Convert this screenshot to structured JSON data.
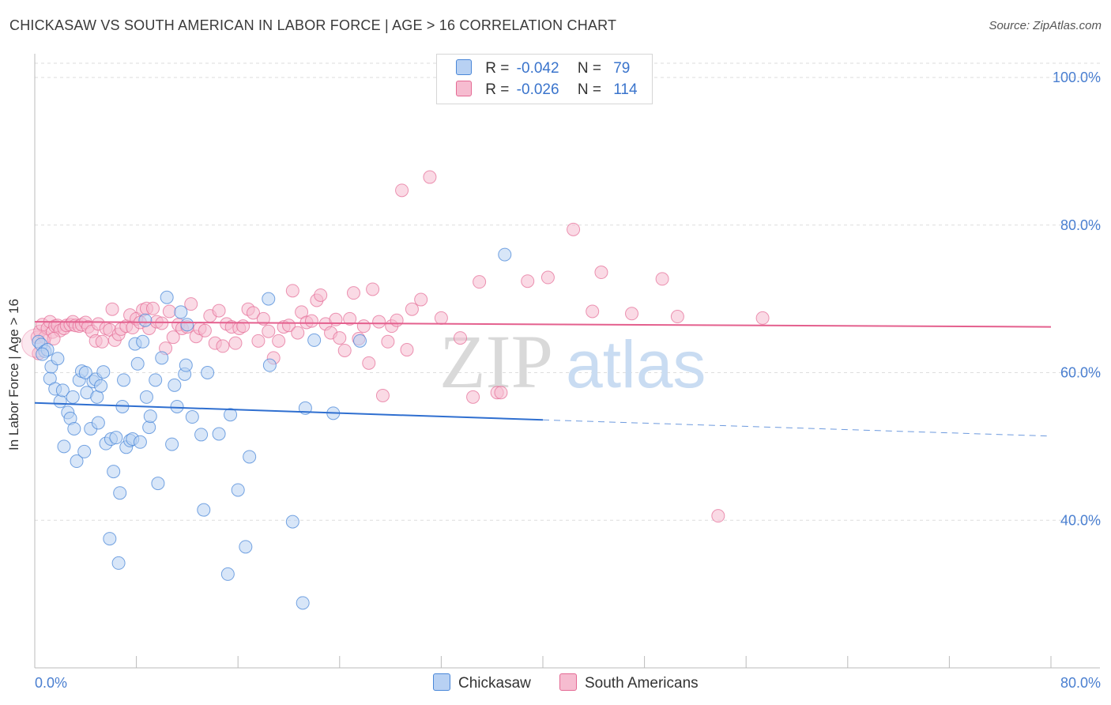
{
  "title": "CHICKASAW VS SOUTH AMERICAN IN LABOR FORCE | AGE > 16 CORRELATION CHART",
  "source": "Source: ZipAtlas.com",
  "watermark": {
    "zip": "ZIP",
    "atlas": "atlas"
  },
  "colors": {
    "blue": "#4a87d8",
    "blue_fill": "#b8d1f3",
    "pink": "#e46a94",
    "pink_fill": "#f6bcd0",
    "axis_text": "#4a7fd0"
  },
  "legend": {
    "rows": [
      {
        "r_label": "R =",
        "r_value": "-0.042",
        "n_label": "N =",
        "n_value": "79"
      },
      {
        "r_label": "R =",
        "r_value": "-0.026",
        "n_label": "N =",
        "n_value": "114"
      }
    ]
  },
  "bottom_legend": {
    "series1": "Chickasaw",
    "series2": "South Americans"
  },
  "chart_data": {
    "type": "scatter",
    "title": "CHICKASAW VS SOUTH AMERICAN IN LABOR FORCE | AGE > 16 CORRELATION CHART",
    "xlabel": "",
    "ylabel": "In Labor Force | Age > 16",
    "xlim": [
      0,
      80
    ],
    "ylim": [
      20,
      100
    ],
    "x_tick_labels": [
      "0.0%",
      "80.0%"
    ],
    "y_ticks": [
      40,
      60,
      80,
      100
    ],
    "y_tick_labels": [
      "40.0%",
      "60.0%",
      "80.0%",
      "100.0%"
    ],
    "grid": true,
    "series": [
      {
        "name": "Chickasaw",
        "R": -0.042,
        "N": 79,
        "trend": {
          "x0": 0,
          "y0": 55.9,
          "x1": 40,
          "y1": 53.6,
          "dash_to_x": 80,
          "dash_to_y": 51.4
        },
        "points": [
          [
            0.3,
            64.2
          ],
          [
            0.5,
            63.8
          ],
          [
            0.8,
            62.9
          ],
          [
            1.0,
            63.1
          ],
          [
            1.2,
            59.2
          ],
          [
            1.3,
            60.8
          ],
          [
            1.6,
            57.8
          ],
          [
            1.8,
            61.9
          ],
          [
            2.0,
            56.1
          ],
          [
            2.2,
            57.6
          ],
          [
            2.3,
            50.0
          ],
          [
            2.6,
            54.6
          ],
          [
            2.8,
            53.8
          ],
          [
            3.0,
            56.7
          ],
          [
            3.1,
            52.4
          ],
          [
            3.3,
            48.0
          ],
          [
            3.5,
            59.0
          ],
          [
            3.7,
            60.2
          ],
          [
            3.9,
            49.3
          ],
          [
            4.0,
            60.0
          ],
          [
            4.1,
            57.3
          ],
          [
            4.4,
            52.4
          ],
          [
            4.6,
            58.8
          ],
          [
            4.8,
            59.1
          ],
          [
            4.9,
            56.7
          ],
          [
            5.0,
            53.2
          ],
          [
            5.2,
            58.2
          ],
          [
            5.4,
            60.1
          ],
          [
            5.6,
            50.4
          ],
          [
            5.9,
            37.5
          ],
          [
            6.0,
            51.0
          ],
          [
            6.2,
            46.6
          ],
          [
            6.4,
            51.2
          ],
          [
            6.6,
            34.2
          ],
          [
            6.7,
            43.7
          ],
          [
            6.9,
            55.4
          ],
          [
            7.0,
            59.0
          ],
          [
            7.2,
            49.9
          ],
          [
            7.5,
            50.8
          ],
          [
            7.7,
            51.0
          ],
          [
            7.9,
            63.9
          ],
          [
            8.1,
            61.2
          ],
          [
            8.3,
            50.6
          ],
          [
            8.5,
            64.2
          ],
          [
            8.7,
            67.1
          ],
          [
            8.8,
            56.7
          ],
          [
            9.0,
            52.6
          ],
          [
            9.1,
            54.1
          ],
          [
            9.5,
            59.0
          ],
          [
            9.7,
            45.0
          ],
          [
            10.0,
            62.0
          ],
          [
            10.4,
            70.2
          ],
          [
            10.8,
            50.3
          ],
          [
            11.0,
            58.3
          ],
          [
            11.2,
            55.4
          ],
          [
            11.5,
            68.2
          ],
          [
            11.8,
            59.8
          ],
          [
            11.9,
            61.0
          ],
          [
            12.0,
            66.5
          ],
          [
            12.4,
            54.0
          ],
          [
            13.1,
            51.6
          ],
          [
            13.3,
            41.4
          ],
          [
            13.6,
            60.0
          ],
          [
            14.5,
            51.7
          ],
          [
            15.2,
            32.7
          ],
          [
            15.4,
            54.3
          ],
          [
            16.0,
            44.1
          ],
          [
            16.6,
            36.4
          ],
          [
            16.9,
            48.6
          ],
          [
            18.4,
            70.0
          ],
          [
            18.5,
            61.0
          ],
          [
            20.3,
            39.8
          ],
          [
            21.1,
            28.8
          ],
          [
            21.3,
            55.2
          ],
          [
            22.0,
            64.4
          ],
          [
            23.5,
            54.5
          ],
          [
            25.6,
            64.3
          ],
          [
            37.0,
            76.0
          ],
          [
            0.6,
            62.5
          ]
        ]
      },
      {
        "name": "South Americans",
        "R": -0.026,
        "N": 114,
        "trend": {
          "x0": 0,
          "y0": 66.9,
          "x1": 80,
          "y1": 66.2
        },
        "points": [
          [
            0.2,
            64.8
          ],
          [
            0.4,
            65.6
          ],
          [
            0.6,
            66.5
          ],
          [
            0.8,
            64.8
          ],
          [
            1.0,
            66.0
          ],
          [
            1.2,
            66.9
          ],
          [
            1.4,
            65.5
          ],
          [
            1.6,
            66.3
          ],
          [
            1.8,
            66.4
          ],
          [
            2.0,
            65.7
          ],
          [
            2.3,
            66.0
          ],
          [
            2.5,
            66.4
          ],
          [
            2.8,
            66.5
          ],
          [
            3.0,
            66.9
          ],
          [
            3.2,
            66.4
          ],
          [
            3.5,
            66.3
          ],
          [
            3.7,
            66.5
          ],
          [
            4.0,
            66.8
          ],
          [
            4.2,
            66.2
          ],
          [
            4.5,
            65.6
          ],
          [
            4.8,
            64.3
          ],
          [
            5.0,
            66.6
          ],
          [
            5.3,
            64.2
          ],
          [
            5.6,
            66.0
          ],
          [
            5.9,
            65.8
          ],
          [
            6.1,
            68.6
          ],
          [
            6.3,
            64.4
          ],
          [
            6.6,
            65.2
          ],
          [
            6.8,
            65.9
          ],
          [
            7.2,
            66.3
          ],
          [
            7.5,
            67.8
          ],
          [
            7.7,
            66.1
          ],
          [
            8.0,
            67.3
          ],
          [
            8.3,
            66.8
          ],
          [
            8.5,
            68.5
          ],
          [
            8.8,
            68.7
          ],
          [
            9.0,
            66.0
          ],
          [
            9.3,
            68.7
          ],
          [
            9.6,
            66.9
          ],
          [
            10.0,
            66.7
          ],
          [
            10.3,
            63.3
          ],
          [
            10.6,
            68.3
          ],
          [
            10.9,
            64.8
          ],
          [
            11.3,
            66.5
          ],
          [
            11.6,
            66.0
          ],
          [
            12.0,
            66.2
          ],
          [
            12.3,
            69.3
          ],
          [
            12.7,
            64.9
          ],
          [
            13.0,
            66.0
          ],
          [
            13.4,
            65.7
          ],
          [
            13.8,
            67.7
          ],
          [
            14.2,
            64.0
          ],
          [
            14.5,
            68.4
          ],
          [
            14.8,
            63.6
          ],
          [
            15.1,
            66.6
          ],
          [
            15.5,
            66.2
          ],
          [
            15.8,
            64.0
          ],
          [
            16.1,
            66.0
          ],
          [
            16.4,
            66.3
          ],
          [
            16.8,
            68.6
          ],
          [
            17.2,
            68.1
          ],
          [
            17.6,
            64.3
          ],
          [
            18.0,
            67.3
          ],
          [
            18.4,
            65.6
          ],
          [
            18.8,
            62.0
          ],
          [
            19.2,
            64.3
          ],
          [
            19.6,
            66.2
          ],
          [
            20.0,
            66.4
          ],
          [
            20.3,
            71.1
          ],
          [
            20.7,
            65.4
          ],
          [
            21.0,
            68.2
          ],
          [
            21.4,
            66.8
          ],
          [
            21.8,
            67.0
          ],
          [
            22.2,
            69.8
          ],
          [
            22.5,
            70.5
          ],
          [
            22.9,
            66.6
          ],
          [
            23.3,
            65.4
          ],
          [
            23.7,
            67.2
          ],
          [
            24.0,
            64.7
          ],
          [
            24.4,
            63.0
          ],
          [
            24.8,
            67.3
          ],
          [
            25.1,
            70.8
          ],
          [
            25.5,
            64.6
          ],
          [
            25.9,
            66.3
          ],
          [
            26.3,
            61.3
          ],
          [
            26.6,
            71.3
          ],
          [
            27.1,
            66.9
          ],
          [
            27.4,
            56.9
          ],
          [
            27.8,
            64.2
          ],
          [
            28.1,
            66.3
          ],
          [
            28.5,
            67.1
          ],
          [
            28.9,
            84.7
          ],
          [
            29.3,
            63.1
          ],
          [
            29.7,
            68.6
          ],
          [
            30.4,
            69.9
          ],
          [
            31.1,
            86.5
          ],
          [
            32.0,
            67.4
          ],
          [
            33.5,
            64.7
          ],
          [
            34.5,
            56.7
          ],
          [
            35.0,
            72.3
          ],
          [
            36.4,
            57.3
          ],
          [
            36.7,
            57.3
          ],
          [
            38.8,
            72.4
          ],
          [
            40.4,
            72.9
          ],
          [
            42.4,
            79.4
          ],
          [
            43.9,
            68.3
          ],
          [
            44.6,
            73.6
          ],
          [
            47.0,
            68.0
          ],
          [
            49.4,
            72.7
          ],
          [
            50.6,
            67.6
          ],
          [
            53.8,
            40.6
          ],
          [
            57.3,
            67.4
          ],
          [
            0.3,
            62.6
          ],
          [
            1.5,
            64.6
          ]
        ]
      }
    ]
  }
}
